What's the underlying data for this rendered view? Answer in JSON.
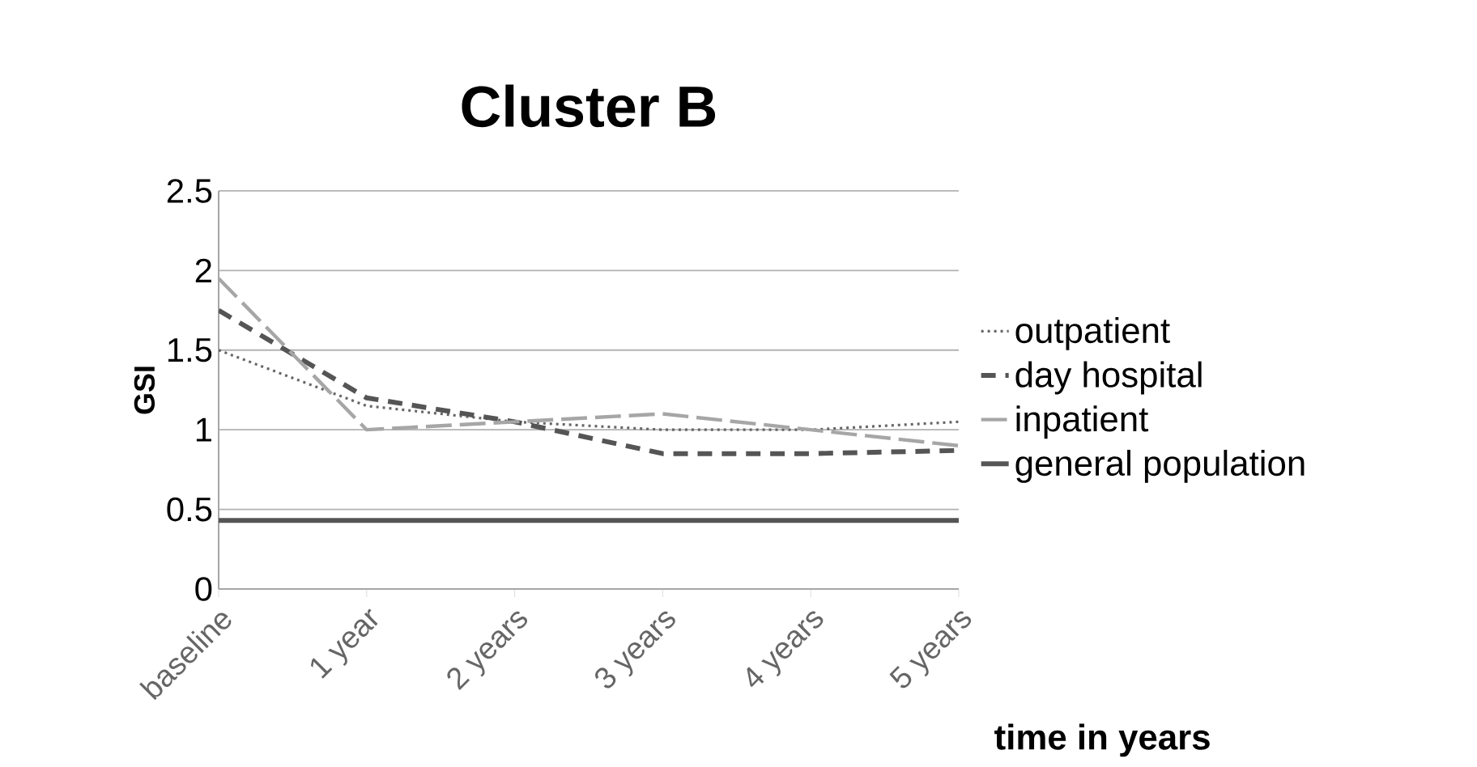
{
  "chart_data": {
    "type": "line",
    "title": "Cluster B",
    "xlabel": "time in years",
    "ylabel": "GSI",
    "categories": [
      "baseline",
      "1 year",
      "2 years",
      "3 years",
      "4 years",
      "5 years"
    ],
    "series": [
      {
        "name": "outpatient",
        "color": "#666666",
        "line_style": "dotted",
        "values": [
          1.5,
          1.15,
          1.05,
          1.0,
          1.0,
          1.05
        ]
      },
      {
        "name": "day hospital",
        "color": "#555555",
        "line_style": "dashed",
        "values": [
          1.75,
          1.2,
          1.05,
          0.85,
          0.85,
          0.87
        ]
      },
      {
        "name": "inpatient",
        "color": "#a6a6a6",
        "line_style": "long dashed",
        "values": [
          1.95,
          1.0,
          1.05,
          1.1,
          1.0,
          0.9
        ]
      },
      {
        "name": "general population",
        "color": "#555555",
        "line_style": "solid",
        "values": [
          0.43,
          0.43,
          0.43,
          0.43,
          0.43,
          0.43
        ]
      }
    ],
    "ylim": [
      0,
      2.5
    ],
    "yticks": [
      0,
      0.5,
      1,
      1.5,
      2,
      2.5
    ],
    "grid": "y",
    "legend": "right",
    "marker": "none"
  }
}
